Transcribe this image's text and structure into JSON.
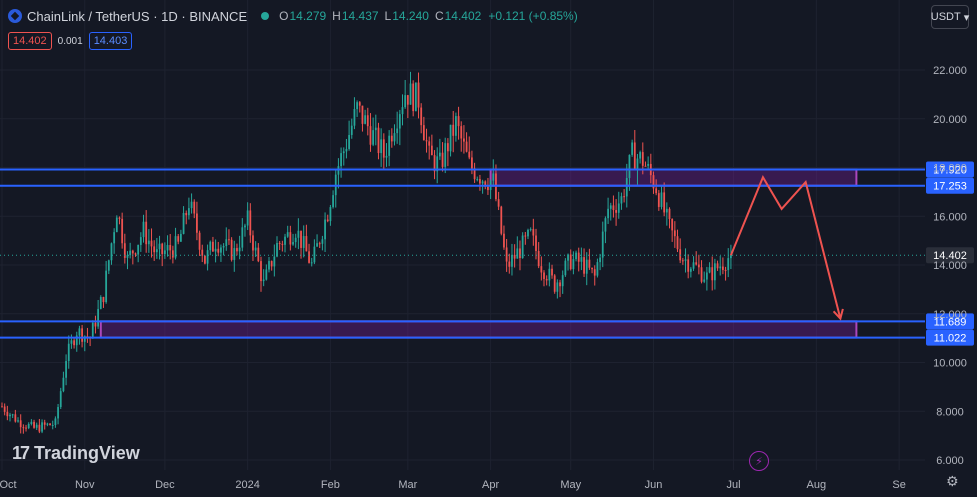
{
  "header": {
    "symbol": "ChainLink / TetherUS · 1D · BINANCE",
    "open_label": "O",
    "open": "14.279",
    "high_label": "H",
    "high": "14.437",
    "low_label": "L",
    "low": "14.240",
    "close_label": "C",
    "close": "14.402",
    "change": "+0.121 (+0.85%)"
  },
  "trade": {
    "sell": "14.402",
    "spread": "0.001",
    "buy": "14.403"
  },
  "currency": "USDT",
  "watermark": "TradingView",
  "colors": {
    "bg": "#141824",
    "up": "#26a69a",
    "down": "#ef5350",
    "zone": "#7b1fa2",
    "line": "#2962ff",
    "arrow": "#ef5350"
  },
  "chart_data": {
    "type": "candlestick",
    "ylim": [
      5.5,
      23.5
    ],
    "y_ticks": [
      6,
      8,
      10,
      12,
      14,
      16,
      18,
      20,
      22
    ],
    "y_tick_labels": [
      "6.000",
      "8.000",
      "10.000",
      "12.000",
      "14.000",
      "16.000",
      "18.000",
      "20.000",
      "22.000"
    ],
    "x_ticks": [
      {
        "label": "Oct",
        "day": 0
      },
      {
        "label": "Nov",
        "day": 31
      },
      {
        "label": "Dec",
        "day": 61
      },
      {
        "label": "2024",
        "day": 92
      },
      {
        "label": "Feb",
        "day": 123
      },
      {
        "label": "Mar",
        "day": 152
      },
      {
        "label": "Apr",
        "day": 183
      },
      {
        "label": "May",
        "day": 213
      },
      {
        "label": "Jun",
        "day": 244
      },
      {
        "label": "Jul",
        "day": 274
      },
      {
        "label": "Aug",
        "day": 305
      },
      {
        "label": "Se",
        "day": 336
      }
    ],
    "last_day": 273,
    "candle_path": [
      [
        0,
        8.2
      ],
      [
        6,
        7.6
      ],
      [
        12,
        7.3
      ],
      [
        20,
        7.5
      ],
      [
        24,
        10.2
      ],
      [
        28,
        11.3
      ],
      [
        33,
        11.0
      ],
      [
        38,
        12.8
      ],
      [
        43,
        16.3
      ],
      [
        47,
        14.2
      ],
      [
        53,
        15.4
      ],
      [
        58,
        14.4
      ],
      [
        66,
        14.8
      ],
      [
        70,
        16.6
      ],
      [
        76,
        14.2
      ],
      [
        80,
        15.0
      ],
      [
        87,
        14.5
      ],
      [
        92,
        15.8
      ],
      [
        98,
        13.2
      ],
      [
        103,
        14.8
      ],
      [
        110,
        15.5
      ],
      [
        116,
        14.0
      ],
      [
        122,
        16.2
      ],
      [
        125,
        17.8
      ],
      [
        128,
        18.7
      ],
      [
        133,
        20.4
      ],
      [
        137,
        19.7
      ],
      [
        143,
        18.5
      ],
      [
        147,
        19.9
      ],
      [
        151,
        21.1
      ],
      [
        156,
        20.8
      ],
      [
        160,
        18.4
      ],
      [
        164,
        18.1
      ],
      [
        170,
        19.8
      ],
      [
        175,
        18.1
      ],
      [
        180,
        17.6
      ],
      [
        184,
        17.4
      ],
      [
        189,
        13.9
      ],
      [
        193,
        14.5
      ],
      [
        198,
        15.2
      ],
      [
        202,
        14.0
      ],
      [
        207,
        13.2
      ],
      [
        213,
        14.2
      ],
      [
        217,
        14.1
      ],
      [
        222,
        13.5
      ],
      [
        227,
        16.3
      ],
      [
        232,
        16.7
      ],
      [
        236,
        18.5
      ],
      [
        240,
        18.3
      ],
      [
        245,
        17.2
      ],
      [
        250,
        15.5
      ],
      [
        255,
        14.3
      ],
      [
        260,
        13.9
      ],
      [
        264,
        13.5
      ],
      [
        268,
        13.9
      ],
      [
        273,
        14.402
      ]
    ],
    "current_price": 14.402,
    "current_price_label": "14.402",
    "levels": [
      {
        "value": 17.92,
        "label": "17.920"
      },
      {
        "value": 17.253,
        "label": "17.253"
      },
      {
        "value": 11.689,
        "label": "11.689"
      },
      {
        "value": 11.022,
        "label": "11.022"
      }
    ],
    "zones": [
      {
        "day_start": 183,
        "day_end": 320,
        "top": 17.92,
        "bottom": 17.253
      },
      {
        "day_start": 37,
        "day_end": 320,
        "top": 11.689,
        "bottom": 11.022
      }
    ],
    "projection": [
      [
        273,
        14.402
      ],
      [
        285,
        17.6
      ],
      [
        292,
        16.3
      ],
      [
        301,
        17.4
      ],
      [
        314,
        11.8
      ]
    ]
  }
}
